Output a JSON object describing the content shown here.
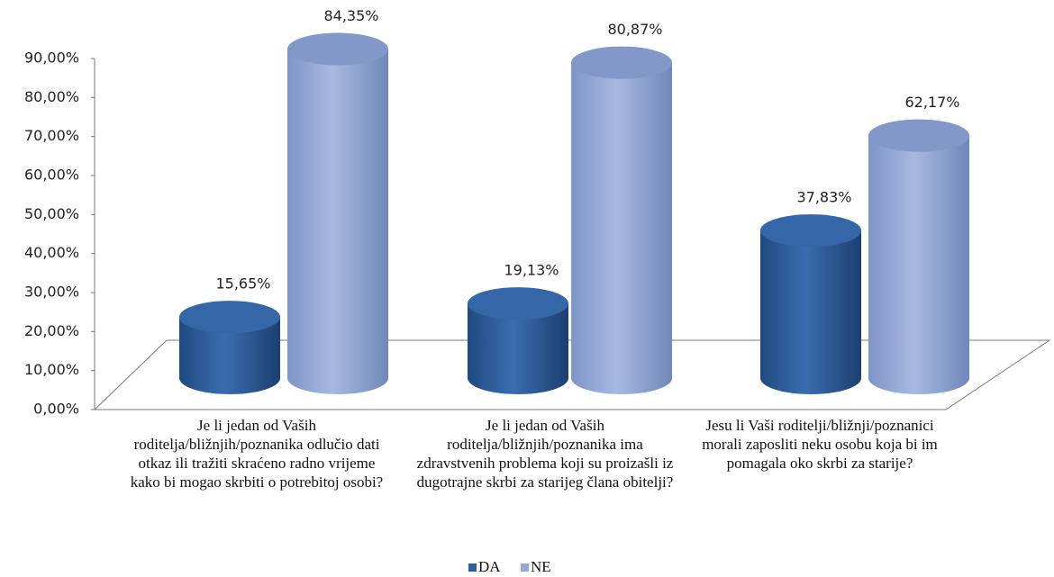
{
  "chart_data": {
    "type": "bar",
    "categories": [
      "Je li jedan od Vaših roditelja/bližnjih/poznanika odlučio dati otkaz ili tražiti skraćeno radno vrijeme kako bi mogao skrbiti o potrebitoj osobi?",
      "Je li jedan od Vaših roditelja/bližnjih/poznanika ima zdravstvenih problema koji su proizašli iz dugotrajne skrbi za starijeg člana obitelji?",
      "Jesu li Vaši roditelji/bližnji/poznanici morali zaposliti neku osobu koja bi im pomagala oko skrbi za starije?"
    ],
    "series": [
      {
        "name": "DA",
        "color": "#2f5f9e",
        "values": [
          15.65,
          19.13,
          37.83
        ],
        "value_labels": [
          "15,65%",
          "19,13%",
          "37,83%"
        ]
      },
      {
        "name": "NE",
        "color": "#93a9d6",
        "values": [
          84.35,
          80.87,
          62.17
        ],
        "value_labels": [
          "84,35%",
          "80,87%",
          "62,17%"
        ]
      }
    ],
    "ylim": [
      0,
      90
    ],
    "yticks": [
      {
        "value": 0,
        "label": "0,00%"
      },
      {
        "value": 10,
        "label": "10,00%"
      },
      {
        "value": 20,
        "label": "20,00%"
      },
      {
        "value": 30,
        "label": "30,00%"
      },
      {
        "value": 40,
        "label": "40,00%"
      },
      {
        "value": 50,
        "label": "50,00%"
      },
      {
        "value": 60,
        "label": "60,00%"
      },
      {
        "value": 70,
        "label": "70,00%"
      },
      {
        "value": 80,
        "label": "80,00%"
      },
      {
        "value": 90,
        "label": "90,00%"
      }
    ],
    "legend": "bottom"
  }
}
